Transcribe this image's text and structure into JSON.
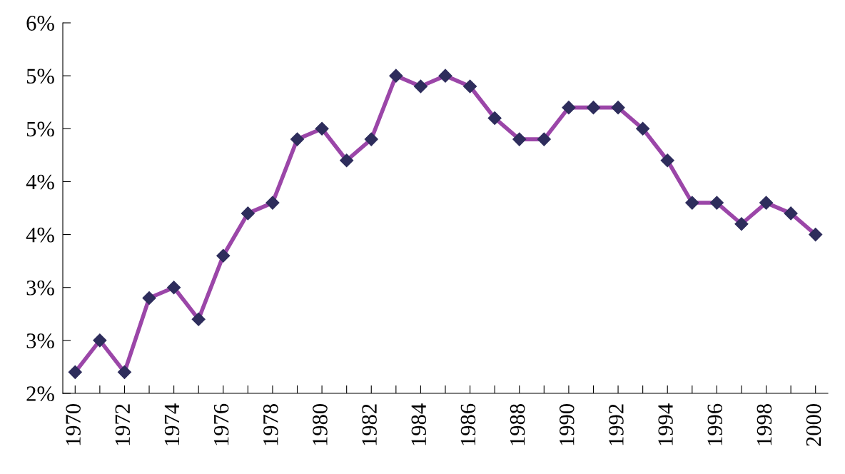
{
  "chart_data": {
    "type": "line",
    "x": [
      1970,
      1971,
      1972,
      1973,
      1974,
      1975,
      1976,
      1977,
      1978,
      1979,
      1980,
      1981,
      1982,
      1983,
      1984,
      1985,
      1986,
      1987,
      1988,
      1989,
      1990,
      1991,
      1992,
      1993,
      1994,
      1995,
      1996,
      1997,
      1998,
      1999,
      2000
    ],
    "series": [
      {
        "color": "#9b46a8",
        "values": [
          2.2,
          2.5,
          2.2,
          2.9,
          3.0,
          2.7,
          3.3,
          3.7,
          3.8,
          4.4,
          4.5,
          4.2,
          4.4,
          5.0,
          4.9,
          5.0,
          4.9,
          4.6,
          4.4,
          4.4,
          4.7,
          4.7,
          4.7,
          4.5,
          4.2,
          3.8,
          3.8,
          3.6,
          3.8,
          3.7,
          3.5
        ]
      }
    ],
    "xlim": [
      1969.5,
      2000.5
    ],
    "xticks": [
      1970,
      {
        "value": 1971,
        "label": null
      },
      1972,
      {
        "value": 1973,
        "label": null
      },
      1974,
      {
        "value": 1975,
        "label": null
      },
      1976,
      {
        "value": 1977,
        "label": null
      },
      1978,
      {
        "value": 1979,
        "label": null
      },
      1980,
      {
        "value": 1981,
        "label": null
      },
      1982,
      {
        "value": 1983,
        "label": null
      },
      1984,
      {
        "value": 1985,
        "label": null
      },
      1986,
      {
        "value": 1987,
        "label": null
      },
      1988,
      {
        "value": 1989,
        "label": null
      },
      1990,
      {
        "value": 1991,
        "label": null
      },
      1992,
      {
        "value": 1993,
        "label": null
      },
      1994,
      {
        "value": 1995,
        "label": null
      },
      1996,
      {
        "value": 1997,
        "label": null
      },
      1998,
      {
        "value": 1999,
        "label": null
      },
      2000
    ],
    "ylim": [
      2,
      5.5
    ],
    "yticks": [
      {
        "value": 2,
        "label": "2%"
      },
      {
        "value": 2.5,
        "label": "3%"
      },
      {
        "value": 3,
        "label": "3%"
      },
      {
        "value": 3.5,
        "label": "4%"
      },
      {
        "value": 4,
        "label": "4%"
      },
      {
        "value": 4.5,
        "label": "5%"
      },
      {
        "value": 5,
        "label": "5%"
      },
      {
        "value": 5.5,
        "label": "6%"
      }
    ],
    "marker": "diamond",
    "line_style": "solid",
    "grid": false,
    "legend": false
  }
}
